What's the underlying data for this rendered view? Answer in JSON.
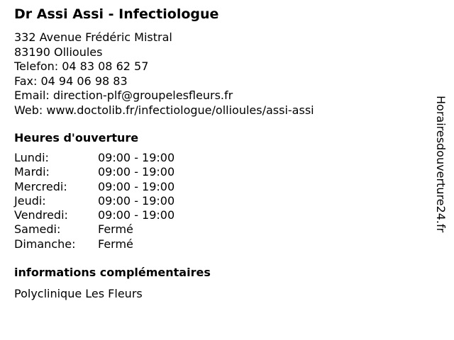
{
  "title": "Dr Assi Assi - Infectiologue",
  "address": [
    "332 Avenue Frédéric Mistral",
    "83190 Ollioules"
  ],
  "phone": "Telefon: 04 83 08 62 57",
  "fax": "Fax: 04 94 06 98 83",
  "email": "Email: direction-plf@groupelesfleurs.fr",
  "web": "Web: www.doctolib.fr/infectiologue/ollioules/assi-assi",
  "hours_heading": "Heures d'ouverture",
  "hours": [
    {
      "day": "Lundi:",
      "time": "09:00 - 19:00"
    },
    {
      "day": "Mardi:",
      "time": "09:00 - 19:00"
    },
    {
      "day": "Mercredi:",
      "time": "09:00 - 19:00"
    },
    {
      "day": "Jeudi:",
      "time": "09:00 - 19:00"
    },
    {
      "day": "Vendredi:",
      "time": "09:00 - 19:00"
    },
    {
      "day": "Samedi:",
      "time": "Fermé"
    },
    {
      "day": "Dimanche:",
      "time": "Fermé"
    }
  ],
  "extra_heading": "informations complémentaires",
  "extra_text": "Polyclinique Les Fleurs",
  "side_watermark": "Horairesdouverture24.fr"
}
